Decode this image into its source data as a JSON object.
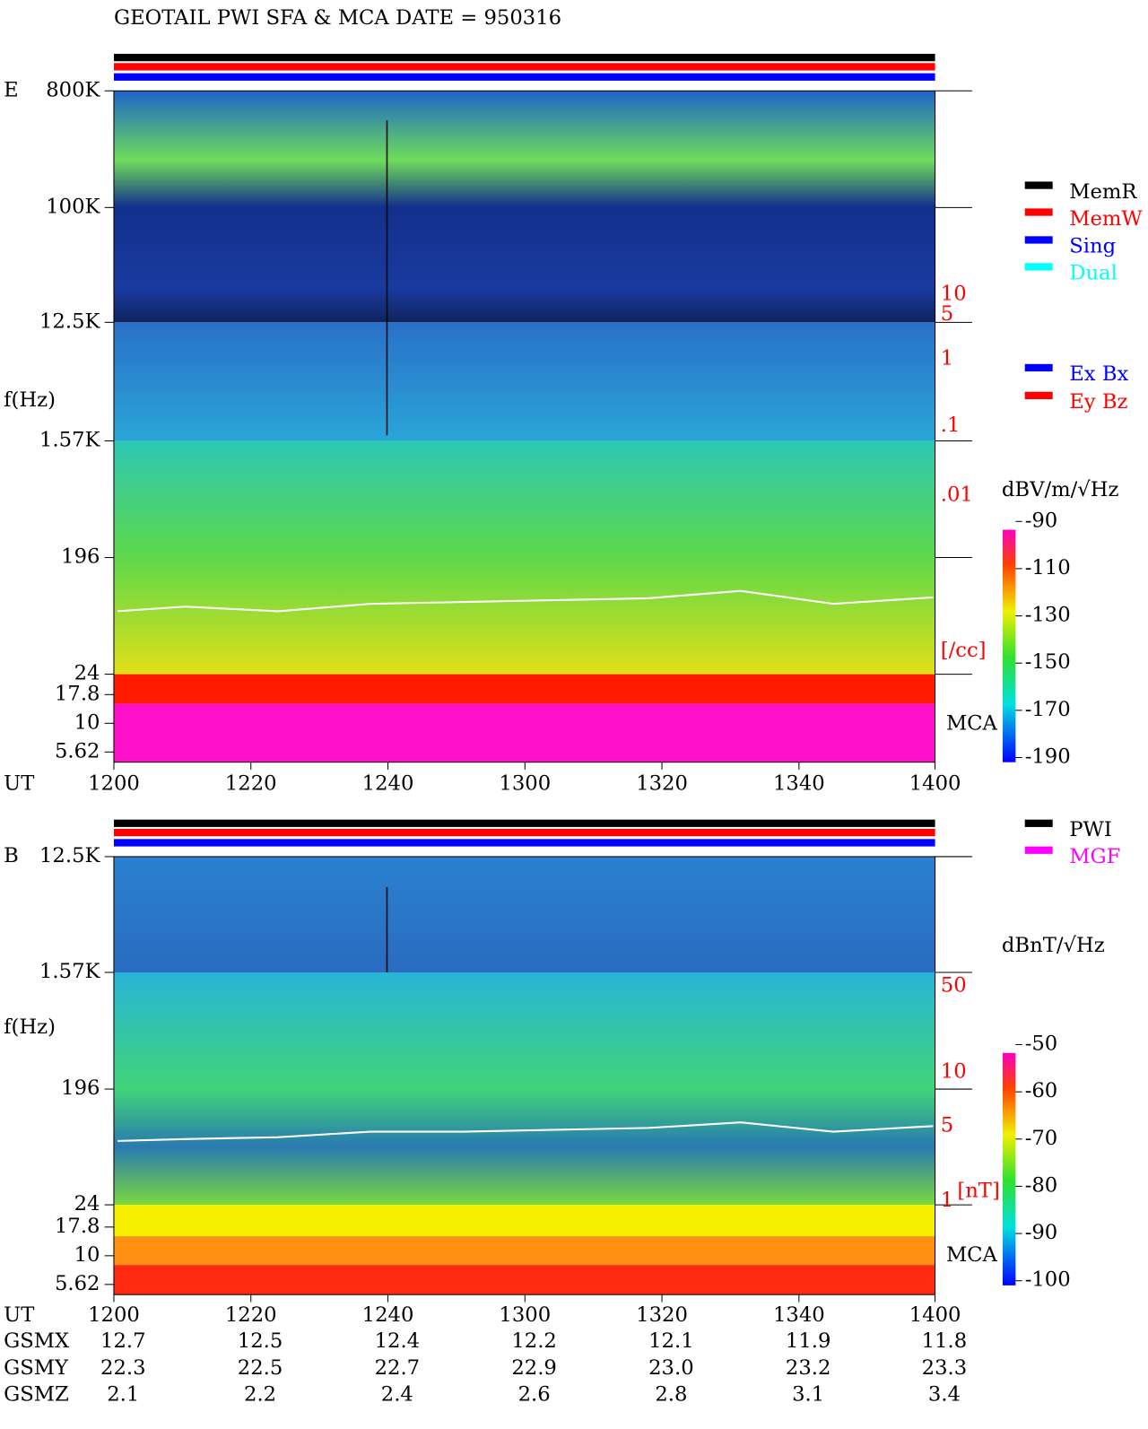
{
  "title": "GEOTAIL  PWI SFA & MCA   DATE = 950316",
  "panels": [
    {
      "label": "E",
      "y_axis_label": "f(Hz)",
      "freq_ticks": [
        "800K",
        "100K",
        "12.5K",
        "1.57K",
        "196",
        "24",
        "17.8",
        "10",
        "5.62"
      ],
      "right_ticks": [
        "10",
        "5",
        "1",
        ".1",
        ".01",
        "[/cc]"
      ],
      "mca_label": "MCA",
      "legend": [
        {
          "text": "MemR",
          "color": "#000000"
        },
        {
          "text": "MemW",
          "color": "#ff0000"
        },
        {
          "text": "Sing",
          "color": "#0000ff"
        },
        {
          "text": "Dual",
          "color": "#00ffff"
        }
      ],
      "legend2": [
        {
          "text": "Ex Bx",
          "color": "#0000ff"
        },
        {
          "text": "Ey Bz",
          "color": "#ff0000"
        }
      ],
      "colorbar": {
        "unit": "dBV/m/√Hz",
        "ticks": [
          "-90",
          "-110",
          "-130",
          "-150",
          "-170",
          "-190"
        ]
      }
    },
    {
      "label": "B",
      "y_axis_label": "f(Hz)",
      "freq_ticks": [
        "12.5K",
        "1.57K",
        "196",
        "24",
        "17.8",
        "10",
        "5.62"
      ],
      "right_ticks": [
        "50",
        "10",
        "5",
        "1",
        "[nT]"
      ],
      "mca_label": "MCA",
      "legend": [
        {
          "text": "PWI",
          "color": "#000000"
        },
        {
          "text": "MGF",
          "color": "#ff00ff"
        }
      ],
      "legend2": [],
      "colorbar": {
        "unit": "dBnT/√Hz",
        "ticks": [
          "-50",
          "-60",
          "-70",
          "-80",
          "-90",
          "-100"
        ]
      }
    }
  ],
  "x_axis": {
    "label": "UT",
    "ticks": [
      "1200",
      "1220",
      "1240",
      "1300",
      "1320",
      "1340",
      "1400"
    ]
  },
  "orbit": [
    {
      "name": "GSMX",
      "values": [
        "12.7",
        "12.5",
        "12.4",
        "12.2",
        "12.1",
        "11.9",
        "11.8"
      ]
    },
    {
      "name": "GSMY",
      "values": [
        "22.3",
        "22.5",
        "22.7",
        "22.9",
        "23.0",
        "23.2",
        "23.3"
      ]
    },
    {
      "name": "GSMZ",
      "values": [
        "2.1",
        "2.2",
        "2.4",
        "2.6",
        "2.8",
        "3.1",
        "3.4"
      ]
    }
  ]
}
